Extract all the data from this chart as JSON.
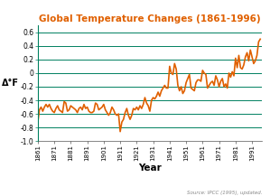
{
  "title": "Global Temperature Changes (1861-1996)",
  "title_color": "#E06000",
  "xlabel": "Year",
  "ylabel": "Δ°F",
  "source_text": "Source: IPCC (1995), updated.",
  "background_color": "#ffffff",
  "plot_bg_color": "#ffffff",
  "line_color": "#E06000",
  "grid_color": "#008060",
  "ylim": [
    -1.0,
    0.7
  ],
  "yticks": [
    -1.0,
    -0.8,
    -0.6,
    -0.4,
    -0.2,
    0.0,
    0.2,
    0.4,
    0.6
  ],
  "xtick_years": [
    1861,
    1871,
    1881,
    1891,
    1901,
    1911,
    1921,
    1931,
    1941,
    1951,
    1961,
    1971,
    1981,
    1991
  ],
  "years": [
    1861,
    1862,
    1863,
    1864,
    1865,
    1866,
    1867,
    1868,
    1869,
    1870,
    1871,
    1872,
    1873,
    1874,
    1875,
    1876,
    1877,
    1878,
    1879,
    1880,
    1881,
    1882,
    1883,
    1884,
    1885,
    1886,
    1887,
    1888,
    1889,
    1890,
    1891,
    1892,
    1893,
    1894,
    1895,
    1896,
    1897,
    1898,
    1899,
    1900,
    1901,
    1902,
    1903,
    1904,
    1905,
    1906,
    1907,
    1908,
    1909,
    1910,
    1911,
    1912,
    1913,
    1914,
    1915,
    1916,
    1917,
    1918,
    1919,
    1920,
    1921,
    1922,
    1923,
    1924,
    1925,
    1926,
    1927,
    1928,
    1929,
    1930,
    1931,
    1932,
    1933,
    1934,
    1935,
    1936,
    1937,
    1938,
    1939,
    1940,
    1941,
    1942,
    1943,
    1944,
    1945,
    1946,
    1947,
    1948,
    1949,
    1950,
    1951,
    1952,
    1953,
    1954,
    1955,
    1956,
    1957,
    1958,
    1959,
    1960,
    1961,
    1962,
    1963,
    1964,
    1965,
    1966,
    1967,
    1968,
    1969,
    1970,
    1971,
    1972,
    1973,
    1974,
    1975,
    1976,
    1977,
    1978,
    1979,
    1980,
    1981,
    1982,
    1983,
    1984,
    1985,
    1986,
    1987,
    1988,
    1989,
    1990,
    1991,
    1992,
    1993,
    1994,
    1995,
    1996
  ],
  "values": [
    -0.72,
    -0.54,
    -0.5,
    -0.56,
    -0.5,
    -0.46,
    -0.5,
    -0.46,
    -0.52,
    -0.56,
    -0.58,
    -0.52,
    -0.48,
    -0.54,
    -0.56,
    -0.58,
    -0.42,
    -0.44,
    -0.56,
    -0.54,
    -0.48,
    -0.5,
    -0.52,
    -0.54,
    -0.58,
    -0.52,
    -0.5,
    -0.54,
    -0.46,
    -0.52,
    -0.5,
    -0.56,
    -0.58,
    -0.58,
    -0.56,
    -0.44,
    -0.46,
    -0.54,
    -0.52,
    -0.5,
    -0.46,
    -0.54,
    -0.58,
    -0.62,
    -0.58,
    -0.5,
    -0.54,
    -0.6,
    -0.62,
    -0.6,
    -0.86,
    -0.72,
    -0.68,
    -0.58,
    -0.52,
    -0.62,
    -0.68,
    -0.62,
    -0.52,
    -0.54,
    -0.5,
    -0.54,
    -0.48,
    -0.52,
    -0.46,
    -0.36,
    -0.44,
    -0.48,
    -0.56,
    -0.4,
    -0.36,
    -0.38,
    -0.34,
    -0.28,
    -0.34,
    -0.26,
    -0.22,
    -0.18,
    -0.22,
    -0.22,
    0.1,
    0.0,
    -0.02,
    0.14,
    0.06,
    -0.18,
    -0.26,
    -0.2,
    -0.3,
    -0.26,
    -0.14,
    -0.08,
    -0.02,
    -0.22,
    -0.24,
    -0.26,
    -0.14,
    -0.1,
    -0.1,
    -0.12,
    0.04,
    0.0,
    -0.02,
    -0.22,
    -0.18,
    -0.14,
    -0.12,
    -0.18,
    -0.04,
    -0.1,
    -0.2,
    -0.12,
    -0.08,
    -0.2,
    -0.16,
    -0.22,
    0.0,
    -0.06,
    0.02,
    -0.04,
    0.22,
    0.08,
    0.26,
    0.08,
    0.06,
    0.12,
    0.24,
    0.3,
    0.18,
    0.34,
    0.24,
    0.14,
    0.18,
    0.26,
    0.46,
    0.5
  ]
}
